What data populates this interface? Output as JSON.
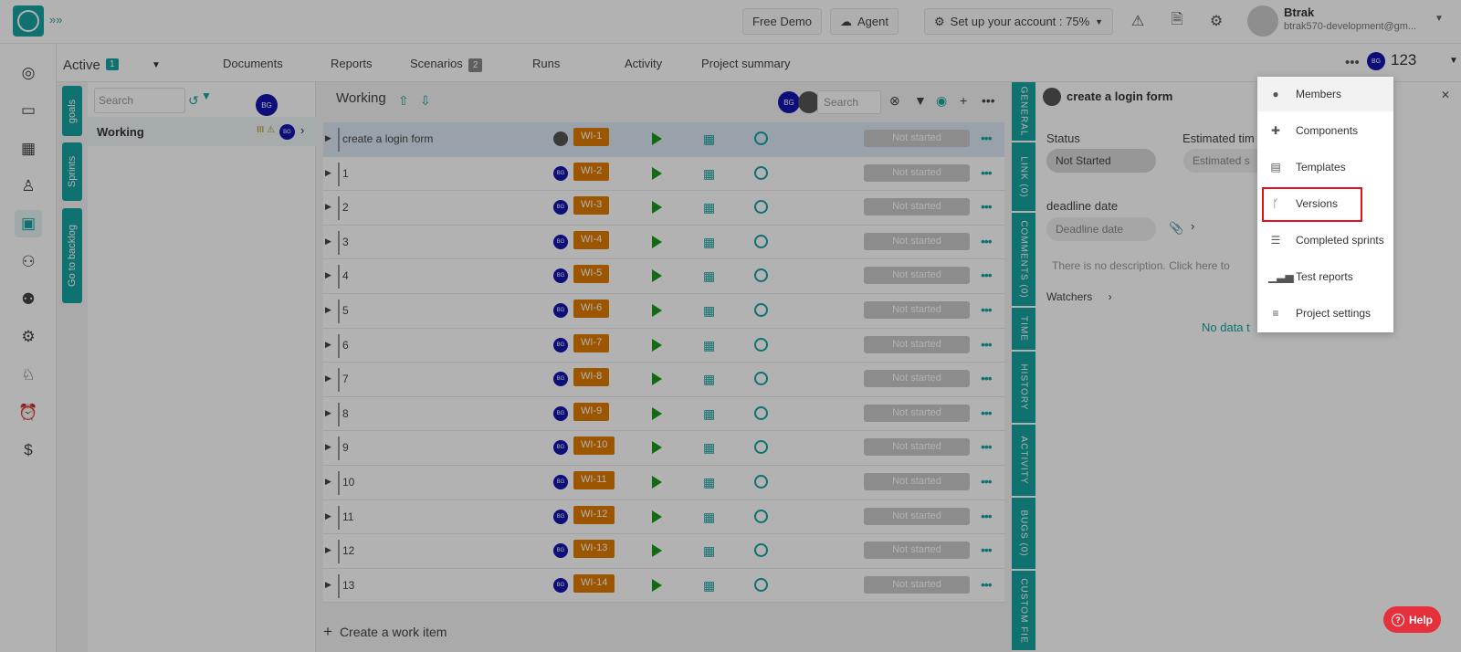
{
  "topbar": {
    "free_demo": "Free Demo",
    "agent": "Agent",
    "setup": "Set up your account : 75%",
    "user_name": "Btrak",
    "user_email": "btrak570-development@gm..."
  },
  "subbar": {
    "active_label": "Active",
    "active_count": "1",
    "tabs": [
      "Documents",
      "Reports",
      "Scenarios",
      "Runs",
      "Activity",
      "Project summary"
    ],
    "scenarios_badge": "2",
    "project_number": "123",
    "avatar_initials": "BG"
  },
  "strip": {
    "goals": "goals",
    "sprints": "Sprints",
    "backlog": "Go to backlog"
  },
  "sprint_panel": {
    "search_placeholder": "Search",
    "avatar_initials": "BG",
    "sprint_name": "Working"
  },
  "main": {
    "title": "Working",
    "search_placeholder": "Search",
    "avatar_initials": "BG",
    "create_label": "Create a work item",
    "rows": [
      {
        "name": "create a login form",
        "key": "WI-1",
        "status": "Not started"
      },
      {
        "name": "1",
        "key": "WI-2",
        "status": "Not started"
      },
      {
        "name": "2",
        "key": "WI-3",
        "status": "Not started"
      },
      {
        "name": "3",
        "key": "WI-4",
        "status": "Not started"
      },
      {
        "name": "4",
        "key": "WI-5",
        "status": "Not started"
      },
      {
        "name": "5",
        "key": "WI-6",
        "status": "Not started"
      },
      {
        "name": "6",
        "key": "WI-7",
        "status": "Not started"
      },
      {
        "name": "7",
        "key": "WI-8",
        "status": "Not started"
      },
      {
        "name": "8",
        "key": "WI-9",
        "status": "Not started"
      },
      {
        "name": "9",
        "key": "WI-10",
        "status": "Not started"
      },
      {
        "name": "10",
        "key": "WI-11",
        "status": "Not started"
      },
      {
        "name": "11",
        "key": "WI-12",
        "status": "Not started"
      },
      {
        "name": "12",
        "key": "WI-13",
        "status": "Not started"
      },
      {
        "name": "13",
        "key": "WI-14",
        "status": "Not started"
      }
    ]
  },
  "vtabs": [
    "GENERAL",
    "LINK (0)",
    "COMMENTS (0)",
    "TIME",
    "HISTORY",
    "ACTIVITY",
    "BUGS (0)",
    "CUSTOM FIE"
  ],
  "detail": {
    "title": "create a login form",
    "status_label": "Status",
    "status_value": "Not Started",
    "estimated_label": "Estimated tim",
    "estimated_placeholder": "Estimated s",
    "deadline_label": "deadline date",
    "deadline_placeholder": "Deadline date",
    "description": "There is no description. Click here to",
    "watchers": "Watchers",
    "no_data": "No data t"
  },
  "menu": {
    "items": [
      "Members",
      "Components",
      "Templates",
      "Versions",
      "Completed sprints",
      "Test reports",
      "Project settings"
    ]
  },
  "help": "Help",
  "colors": {
    "accent": "#17a2a2",
    "work_item_key": "#e07b00",
    "highlight": "#e0121d"
  }
}
